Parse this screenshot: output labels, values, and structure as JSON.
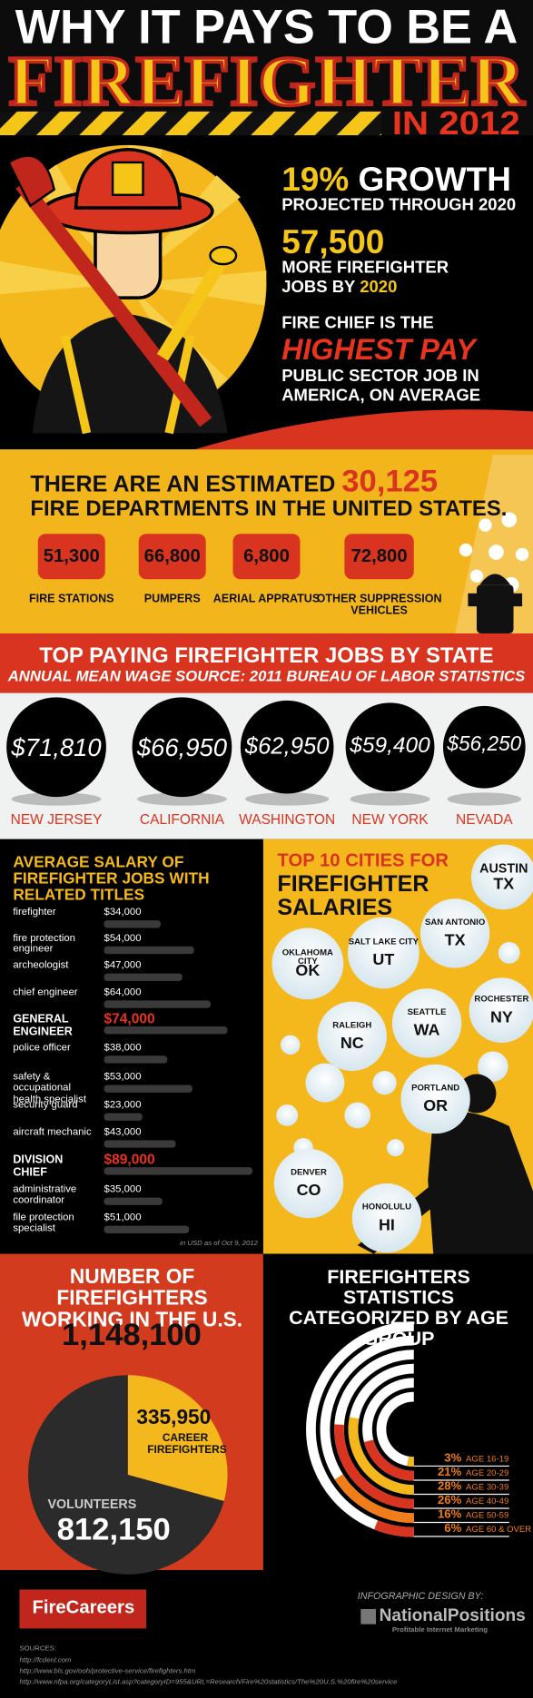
{
  "header": {
    "line1": "WHY IT PAYS TO BE A",
    "line2": "FIREFIGHTER",
    "line3": "IN 2012"
  },
  "hero": {
    "growth": {
      "value": "19%",
      "label": "GROWTH",
      "sub": "PROJECTED THROUGH 2020"
    },
    "jobs": {
      "value": "57,500",
      "line1": "MORE FIREFIGHTER",
      "line2": "JOBS BY",
      "year": "2020"
    },
    "chief": {
      "before": "FIRE CHIEF IS THE",
      "highlight": "HIGHEST PAY",
      "after": "PUBLIC SECTOR JOB IN AMERICA, ON AVERAGE"
    }
  },
  "departments": {
    "intro": "THERE ARE AN ESTIMATED",
    "total": "30,125",
    "outro": "FIRE DEPARTMENTS IN THE UNITED STATES.",
    "items": [
      {
        "value": "51,300",
        "label": "FIRE STATIONS"
      },
      {
        "value": "66,800",
        "label": "PUMPERS"
      },
      {
        "value": "6,800",
        "label": "AERIAL APPRATUS"
      },
      {
        "value": "72,800",
        "label": "OTHER SUPPRESSION VEHICLES"
      }
    ]
  },
  "states": {
    "title": "TOP PAYING FIREFIGHTER JOBS BY STATE",
    "subtitle": "ANNUAL MEAN WAGE",
    "source": "SOURCE: 2011 BUREAU OF LABOR STATISTICS",
    "items": [
      {
        "wage": "$71,810",
        "state": "NEW JERSEY"
      },
      {
        "wage": "$66,950",
        "state": "CALIFORNIA"
      },
      {
        "wage": "$62,950",
        "state": "WASHINGTON"
      },
      {
        "wage": "$59,400",
        "state": "NEW YORK"
      },
      {
        "wage": "$56,250",
        "state": "NEVADA"
      }
    ]
  },
  "salaries": {
    "title": "AVERAGE SALARY OF FIREFIGHTER JOBS WITH RELATED TITLES",
    "titles": [
      "firefighter",
      "fire protection engineer",
      "archeologist",
      "chief engineer",
      "GENERAL ENGINEER",
      "police officer",
      "safety & occupational health specialist",
      "security guard",
      "aircraft mechanic",
      "DIVISION CHIEF",
      "administrative coordinator",
      "file protection specialist"
    ],
    "values": [
      34000,
      54000,
      47000,
      64000,
      74000,
      38000,
      53000,
      23000,
      43000,
      89000,
      35000,
      51000
    ],
    "value_labels": [
      "$34,000",
      "$54,000",
      "$47,000",
      "$64,000",
      "$74,000",
      "$38,000",
      "$53,000",
      "$23,000",
      "$43,000",
      "$89,000",
      "$35,000",
      "$51,000"
    ],
    "highlighted": [
      false,
      false,
      false,
      false,
      true,
      false,
      false,
      false,
      false,
      true,
      false,
      false
    ],
    "xlim": [
      0,
      89000
    ],
    "note": "in USD as of Oct 9, 2012"
  },
  "cities": {
    "title_line1": "TOP 10 CITIES FOR",
    "title_line2": "FIREFIGHTER SALARIES",
    "items": [
      {
        "city": "AUSTIN",
        "state": "TX"
      },
      {
        "city": "SAN ANTONIO",
        "state": "TX"
      },
      {
        "city": "SALT LAKE CITY",
        "state": "UT"
      },
      {
        "city": "OKLAHOMA CITY",
        "state": "OK"
      },
      {
        "city": "ROCHESTER",
        "state": "NY"
      },
      {
        "city": "SEATTLE",
        "state": "WA"
      },
      {
        "city": "RALEIGH",
        "state": "NC"
      },
      {
        "city": "PORTLAND",
        "state": "OR"
      },
      {
        "city": "DENVER",
        "state": "CO"
      },
      {
        "city": "HONOLULU",
        "state": "HI"
      }
    ]
  },
  "firefighters": {
    "title": "NUMBER OF FIREFIGHTERS WORKING IN THE U.S.",
    "total": "1,148,100",
    "labels": [
      "CAREER FIREFIGHTERS",
      "VOLUNTEERS"
    ],
    "values": [
      335950,
      812150
    ],
    "value_labels": [
      "335,950",
      "812,150"
    ],
    "colors": [
      "#f5b81c",
      "#2b2b2b"
    ]
  },
  "age_groups": {
    "title": "FIREFIGHTERS STATISTICS CATEGORIZED BY AGE GROUP",
    "labels": [
      "AGE 16-19",
      "AGE 20-29",
      "AGE 30-39",
      "AGE 40-49",
      "AGE 50-59",
      "AGE 60 & OVER"
    ],
    "values": [
      3,
      21,
      28,
      26,
      16,
      6
    ],
    "value_labels": [
      "3%",
      "21%",
      "28%",
      "26%",
      "16%",
      "6%"
    ],
    "colors": [
      "#f5b81c",
      "#d8341f",
      "#f5b81c",
      "#d8341f",
      "#f07c1a",
      "#d8341f"
    ]
  },
  "footer": {
    "brand": "FireCareers",
    "design_by": "INFOGRAPHIC DESIGN BY:",
    "designer": "NationalPositions",
    "designer_tagline": "Profitable Internet Marketing",
    "sources_title": "SOURCES:",
    "sources": [
      "http://fcdenl.com",
      "http://www.bls.gov/ooh/protective-service/firefighters.htm",
      "http://www.nfpa.org/categoryList.asp?categoryID=955&URL=Research/Fire%20statistics/The%20U.S.%20fire%20service"
    ]
  }
}
